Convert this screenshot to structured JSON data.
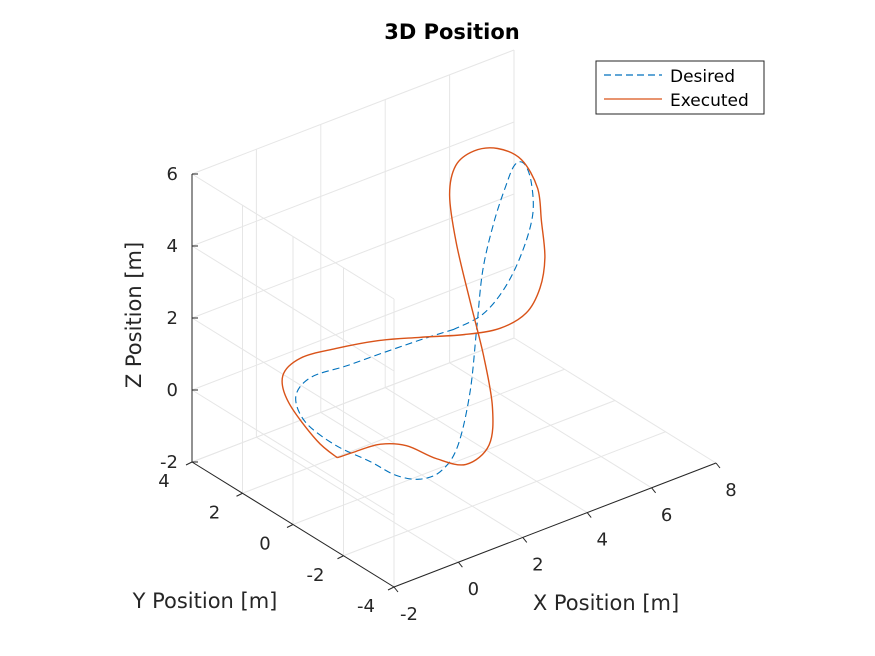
{
  "chart_data": {
    "type": "line",
    "title": "3D Position",
    "xlabel": "X Position [m]",
    "ylabel": "Y Position [m]",
    "zlabel": "Z Position [m]",
    "xlim": [
      -2,
      8
    ],
    "ylim": [
      -4,
      4
    ],
    "zlim": [
      -2,
      6
    ],
    "x_ticks": [
      "-2",
      "0",
      "2",
      "4",
      "6",
      "8"
    ],
    "y_ticks": [
      "-4",
      "-2",
      "0",
      "2",
      "4"
    ],
    "z_ticks": [
      "-2",
      "0",
      "2",
      "4",
      "6"
    ],
    "grid": true,
    "legend_position": "top-right",
    "colors": {
      "Desired": "#0072BD",
      "Executed": "#D95319"
    },
    "series": [
      {
        "name": "Desired",
        "style": "dashed",
        "x": [
          3.0,
          2.3,
          1.4,
          0.4,
          -0.5,
          -1.05,
          -1.15,
          -0.85,
          -0.3,
          0.15,
          0.7,
          1.4,
          2.2,
          3.1,
          3.9,
          4.6,
          5.3,
          5.95,
          6.3,
          6.35,
          6.1,
          5.6,
          4.9,
          4.2,
          3.6,
          3.0
        ],
        "y": [
          0.0,
          0.3,
          0.6,
          0.9,
          1.2,
          1.1,
          0.6,
          -0.2,
          -0.9,
          -1.3,
          -1.55,
          -1.5,
          -1.15,
          -0.5,
          0.25,
          0.9,
          1.35,
          1.7,
          1.8,
          1.5,
          0.9,
          0.2,
          -0.25,
          -0.45,
          -0.35,
          0.0
        ],
        "z": [
          1.7,
          1.55,
          1.38,
          1.2,
          1.05,
          0.75,
          0.3,
          -0.1,
          -0.45,
          -0.8,
          -1.0,
          -1.05,
          -0.8,
          0.1,
          1.3,
          2.4,
          3.3,
          3.95,
          4.35,
          4.5,
          4.35,
          3.9,
          3.25,
          2.6,
          2.05,
          1.7
        ]
      },
      {
        "name": "Executed",
        "style": "solid",
        "x": [
          -0.7,
          -0.95,
          -1.2,
          -1.1,
          -0.55,
          0.3,
          1.3,
          2.2,
          3.1,
          3.8,
          4.5,
          5.2,
          5.9,
          6.5,
          6.85,
          6.7,
          6.2,
          5.5,
          4.7,
          4.0,
          3.5,
          3.2,
          3.05,
          2.9,
          2.6,
          2.0,
          1.5,
          1.05,
          0.4,
          -0.3,
          -0.7
        ],
        "y": [
          -0.1,
          0.4,
          1.2,
          1.55,
          1.55,
          1.25,
          0.85,
          0.35,
          -0.3,
          -0.8,
          -0.95,
          -0.6,
          0.1,
          1.0,
          1.6,
          2.05,
          2.35,
          2.4,
          2.1,
          1.45,
          0.55,
          -0.35,
          -1.1,
          -1.65,
          -1.9,
          -1.75,
          -1.2,
          -0.6,
          -0.35,
          -0.2,
          -0.1
        ],
        "z": [
          -0.55,
          -0.2,
          0.6,
          1.15,
          1.45,
          1.55,
          1.6,
          1.6,
          1.65,
          1.8,
          2.05,
          2.35,
          2.65,
          3.05,
          3.6,
          4.25,
          4.6,
          4.75,
          4.75,
          4.45,
          3.7,
          2.65,
          1.45,
          0.3,
          -0.55,
          -0.95,
          -0.85,
          -0.6,
          -0.45,
          -0.5,
          -0.55
        ]
      }
    ]
  }
}
